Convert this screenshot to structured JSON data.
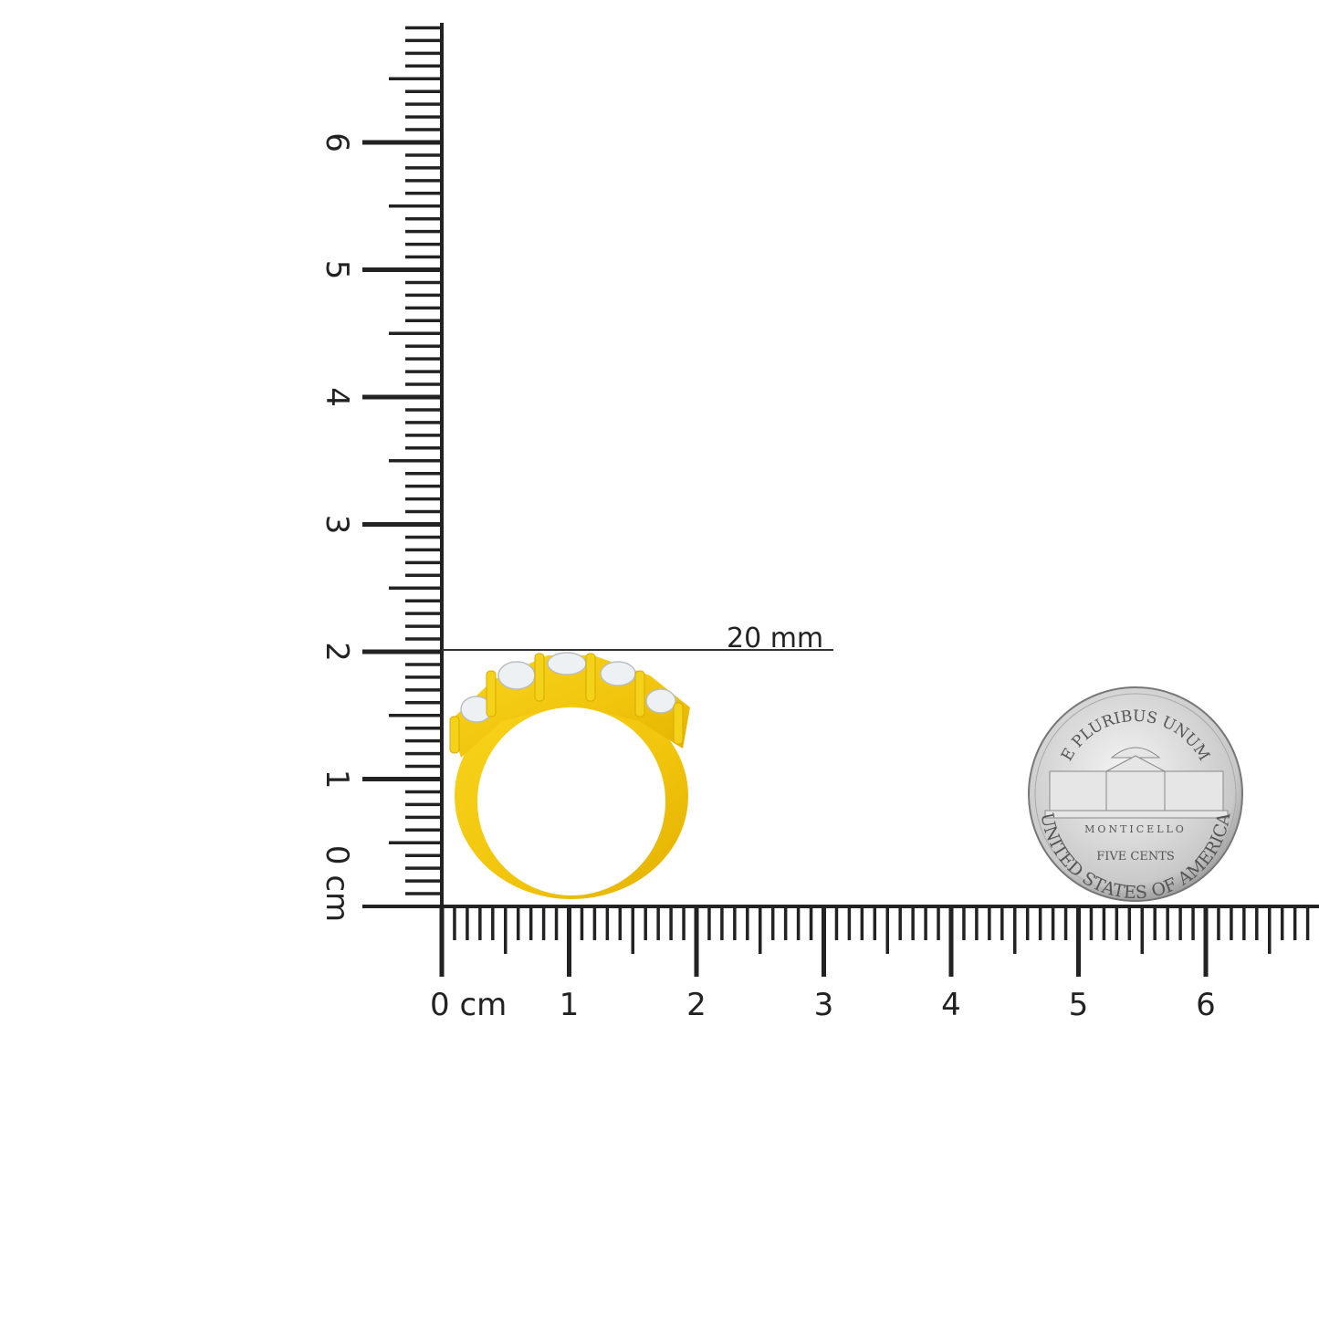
{
  "rulers": {
    "unit": "cm",
    "horizontal_labels": [
      "0",
      "1",
      "2",
      "3",
      "4",
      "5",
      "6"
    ],
    "vertical_labels": [
      "0",
      "1",
      "2",
      "3",
      "4",
      "5",
      "6"
    ],
    "color": "#222222"
  },
  "measurement": {
    "label": "20 mm",
    "value_mm": 20
  },
  "ring": {
    "metal_color": "#f2c80f",
    "stone_count": 5
  },
  "coin": {
    "top_text": "E PLURIBUS UNUM",
    "building_text": "MONTICELLO",
    "denomination": "FIVE CENTS",
    "bottom_text": "UNITED STATES OF AMERICA"
  }
}
